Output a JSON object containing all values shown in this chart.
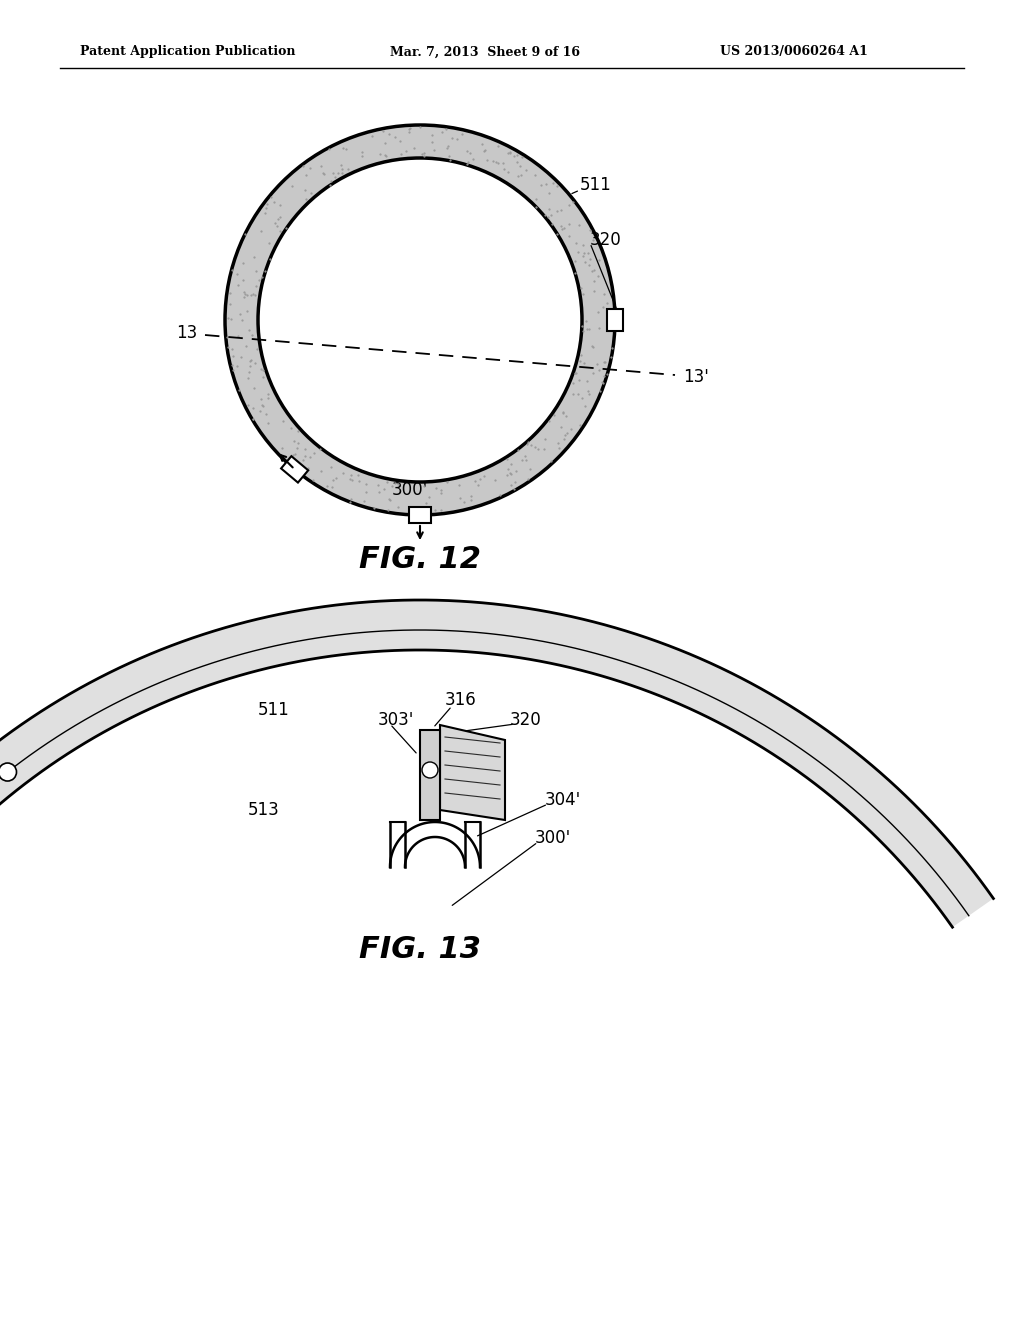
{
  "bg_color": "#ffffff",
  "header_text": "Patent Application Publication",
  "header_date": "Mar. 7, 2013  Sheet 9 of 16",
  "header_patent": "US 2013/0060264 A1",
  "fig12_label": "FIG. 12",
  "fig13_label": "FIG. 13",
  "page_width": 10.24,
  "page_height": 13.2,
  "dpi": 100
}
